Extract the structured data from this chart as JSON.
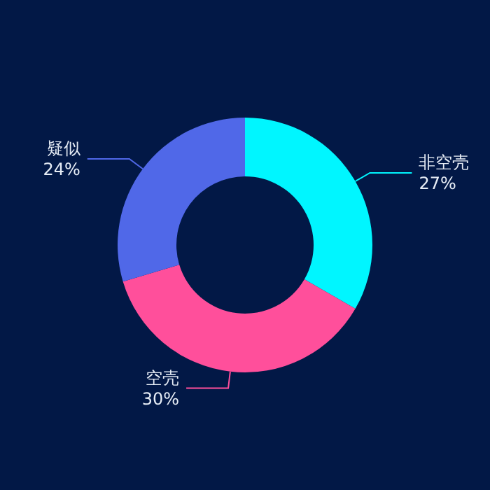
{
  "chart_data": {
    "type": "donut",
    "categories": [
      "非空壳",
      "空壳",
      "疑似"
    ],
    "values": [
      27,
      30,
      24
    ],
    "value_labels": [
      "27%",
      "30%",
      "24%"
    ],
    "colors": [
      "#00f6ff",
      "#ff4f9b",
      "#5068e8"
    ]
  }
}
